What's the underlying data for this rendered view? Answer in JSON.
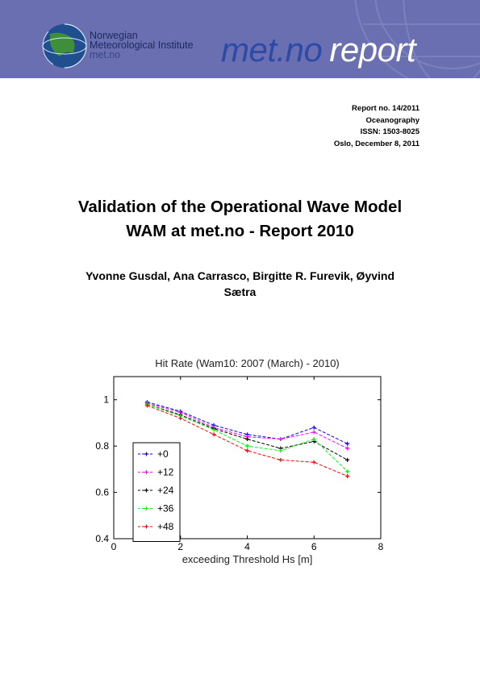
{
  "banner": {
    "bg_color": "#6a6fb1",
    "logo_line1": "Norwegian",
    "logo_line2": "Meteorological Institute",
    "logo_line3": "met.no",
    "brand_part1": "met.no",
    "brand_part2": "report"
  },
  "report_info": {
    "number": "Report no. 14/2011",
    "field": "Oceanography",
    "issn": "ISSN: 1503-8025",
    "place_date": "Oslo, December 8, 2011"
  },
  "title_line1": "Validation of the Operational Wave Model",
  "title_line2": "WAM at met.no - Report 2010",
  "authors_line1": "Yvonne Gusdal, Ana Carrasco, Birgitte R. Furevik, Øyvind",
  "authors_line2": "Sætra",
  "chart_data": {
    "type": "line",
    "title": "Hit Rate (Wam10: 2007 (March) - 2010)",
    "xlabel": "exceeding Threshold Hs [m]",
    "ylabel": "",
    "xlim": [
      0,
      8
    ],
    "ylim": [
      0.4,
      1.1
    ],
    "xticks": [
      "0",
      "2",
      "4",
      "6",
      "8"
    ],
    "yticks": [
      "0.4",
      "0.6",
      "0.8",
      "1"
    ],
    "xtick_values": [
      0,
      2,
      4,
      6,
      8
    ],
    "ytick_values": [
      0.4,
      0.6,
      0.8,
      1.0
    ],
    "grid": false,
    "legend_position": "bottom-left",
    "x": [
      1,
      2,
      3,
      4,
      5,
      6,
      7
    ],
    "series": [
      {
        "name": "+0",
        "color": "#0000ff",
        "values": [
          0.99,
          0.95,
          0.89,
          0.85,
          0.83,
          0.88,
          0.81
        ]
      },
      {
        "name": "+12",
        "color": "#ff00ff",
        "values": [
          0.985,
          0.945,
          0.88,
          0.84,
          0.83,
          0.86,
          0.79
        ]
      },
      {
        "name": "+24",
        "color": "#000000",
        "values": [
          0.98,
          0.935,
          0.875,
          0.83,
          0.79,
          0.82,
          0.74
        ]
      },
      {
        "name": "+36",
        "color": "#00ff00",
        "values": [
          0.98,
          0.93,
          0.87,
          0.8,
          0.78,
          0.83,
          0.69
        ]
      },
      {
        "name": "+48",
        "color": "#ff0000",
        "values": [
          0.975,
          0.92,
          0.85,
          0.78,
          0.74,
          0.73,
          0.67
        ]
      }
    ]
  }
}
